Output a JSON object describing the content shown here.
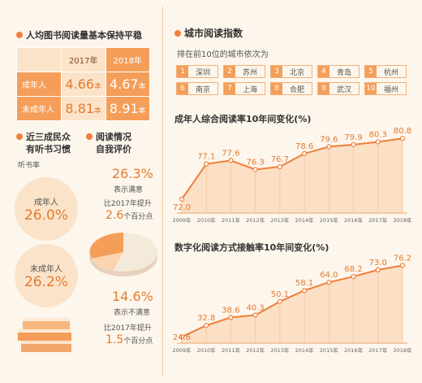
{
  "left": {
    "title": "人均图书阅读量基本保持平稳",
    "table": {
      "year1": "2017年",
      "year2": "2018年",
      "rows": [
        {
          "label": "成年人",
          "v1": "4.66",
          "v2": "4.67",
          "unit": "本"
        },
        {
          "label": "未成年人",
          "v1": "8.81",
          "v2": "8.91",
          "unit": "本"
        }
      ]
    },
    "habit": {
      "title1": "近三成民众",
      "title2": "有听书习惯",
      "sub": "听书率",
      "items": [
        {
          "label": "成年人",
          "value": "26.0%"
        },
        {
          "label": "未成年人",
          "value": "26.2%"
        }
      ]
    },
    "eval": {
      "title1": "阅读情况",
      "title2": "自我评价",
      "satisfied_value": "26.3%",
      "satisfied_label": "表示满意",
      "satisfied_change1": "比2017年提升",
      "satisfied_change2_num": "2.6",
      "satisfied_change2_text": "个百分点",
      "unsatisfied_value": "14.6%",
      "unsatisfied_label": "表示不满意",
      "unsatisfied_change1": "比2017年提升",
      "unsatisfied_change2_num": "1.5",
      "unsatisfied_change2_text": "个百分点"
    }
  },
  "right": {
    "title": "城市阅读指数",
    "rank_title": "排在前10位的城市依次为",
    "cities": [
      "深圳",
      "苏州",
      "北京",
      "青岛",
      "杭州",
      "南京",
      "上海",
      "合肥",
      "武汉",
      "福州"
    ],
    "ranks": [
      "1",
      "2",
      "3",
      "4",
      "5",
      "6",
      "7",
      "8",
      "9",
      "10"
    ]
  },
  "chart_data": [
    {
      "type": "line",
      "title": "成年人综合阅读率10年间变化(%)",
      "x": [
        "2009年",
        "2010年",
        "2011年",
        "2012年",
        "2013年",
        "2014年",
        "2015年",
        "2016年",
        "2017年",
        "2018年"
      ],
      "series": [
        {
          "values": [
            72.0,
            77.1,
            77.6,
            76.3,
            76.7,
            78.6,
            79.6,
            79.9,
            80.3,
            80.8
          ]
        }
      ],
      "labels": [
        "72.0",
        "77.1",
        "77.6",
        "76.3",
        "76.7",
        "78.6",
        "79.6",
        "79.9",
        "80.3",
        "80.8"
      ],
      "ylim": [
        70,
        82
      ]
    },
    {
      "type": "line",
      "title": "数字化阅读方式接触率10年间变化(%)",
      "x": [
        "2009年",
        "2010年",
        "2011年",
        "2012年",
        "2013年",
        "2014年",
        "2015年",
        "2016年",
        "2017年",
        "2018年"
      ],
      "series": [
        {
          "values": [
            24.6,
            32.8,
            38.6,
            40.3,
            50.1,
            58.1,
            64.0,
            68.2,
            73.0,
            76.2
          ]
        }
      ],
      "labels": [
        "24.6",
        "32.8",
        "38.6",
        "40.3",
        "50.1",
        "58.1",
        "64.0",
        "68.2",
        "73.0",
        "76.2"
      ],
      "ylim": [
        20,
        80
      ]
    }
  ]
}
